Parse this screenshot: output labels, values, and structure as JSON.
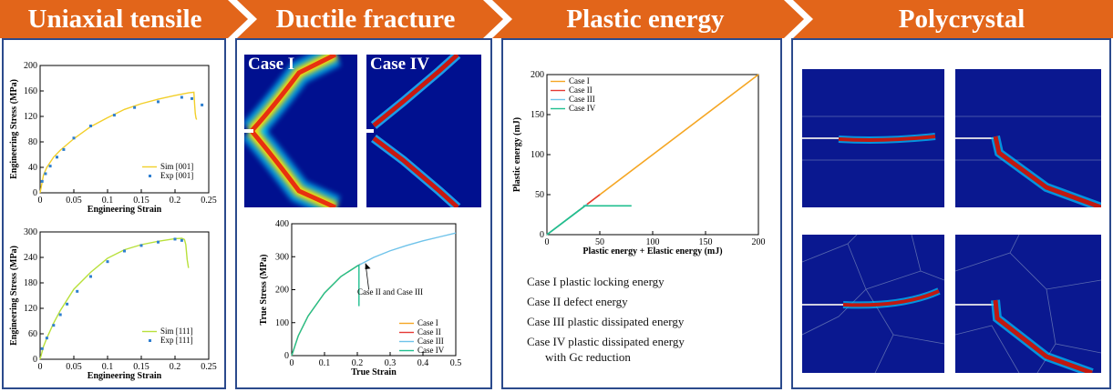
{
  "banner": {
    "items": [
      "Uniaxial tensile",
      "Ductile fracture",
      "Plastic energy",
      "Polycrystal"
    ],
    "color": "#e2651a"
  },
  "tensile_001": {
    "chart_data": {
      "type": "line",
      "xlabel": "Engineering Strain",
      "ylabel": "Engineering Stress (MPa)",
      "xlim": [
        0,
        0.25
      ],
      "ylim": [
        0,
        200
      ],
      "xticks": [
        "0",
        "0.05",
        "0.1",
        "0.15",
        "0.2",
        "0.25"
      ],
      "yticks": [
        "0",
        "40",
        "80",
        "120",
        "160",
        "200"
      ],
      "legend": [
        "Sim [001]",
        "Exp [001]"
      ],
      "series": [
        {
          "name": "Sim [001]",
          "color": "#f2cf2a",
          "x": [
            0,
            0.005,
            0.01,
            0.02,
            0.03,
            0.05,
            0.075,
            0.1,
            0.125,
            0.15,
            0.175,
            0.2,
            0.22,
            0.228,
            0.229,
            0.23,
            0.231,
            0.232
          ],
          "y": [
            0,
            28,
            40,
            56,
            67,
            85,
            104,
            118,
            131,
            140,
            147,
            153,
            157,
            158,
            140,
            125,
            118,
            115
          ]
        },
        {
          "name": "Exp [001]",
          "color": "#2f7fd0",
          "x": [
            0.003,
            0.008,
            0.015,
            0.025,
            0.035,
            0.05,
            0.075,
            0.11,
            0.14,
            0.175,
            0.21,
            0.225,
            0.24
          ],
          "y": [
            18,
            30,
            42,
            56,
            68,
            86,
            105,
            122,
            134,
            143,
            150,
            148,
            138
          ]
        }
      ]
    }
  },
  "tensile_111": {
    "chart_data": {
      "type": "line",
      "xlabel": "Engineering Strain",
      "ylabel": "Engineering Stress (MPa)",
      "xlim": [
        0,
        0.25
      ],
      "ylim": [
        0,
        300
      ],
      "xticks": [
        "0",
        "0.05",
        "0.1",
        "0.15",
        "0.2",
        "0.25"
      ],
      "yticks": [
        "0",
        "60",
        "120",
        "180",
        "240",
        "300"
      ],
      "legend": [
        "Sim [111]",
        "Exp [111]"
      ],
      "series": [
        {
          "name": "Sim [111]",
          "color": "#b8e03a",
          "x": [
            0,
            0.005,
            0.01,
            0.02,
            0.03,
            0.05,
            0.075,
            0.1,
            0.125,
            0.15,
            0.175,
            0.2,
            0.21,
            0.214,
            0.216,
            0.218,
            0.22
          ],
          "y": [
            0,
            30,
            50,
            85,
            115,
            165,
            205,
            238,
            258,
            270,
            278,
            284,
            285,
            282,
            270,
            235,
            215
          ]
        },
        {
          "name": "Exp [111]",
          "color": "#2f7fd0",
          "x": [
            0.003,
            0.01,
            0.02,
            0.03,
            0.04,
            0.055,
            0.075,
            0.1,
            0.125,
            0.15,
            0.175,
            0.2,
            0.21
          ],
          "y": [
            25,
            50,
            80,
            105,
            130,
            160,
            195,
            230,
            255,
            268,
            276,
            283,
            280
          ]
        }
      ]
    }
  },
  "fracture": {
    "case1": "Case I",
    "case4": "Case IV"
  },
  "true_stress": {
    "chart_data": {
      "type": "line",
      "xlabel": "True Strain",
      "ylabel": "True Stress (MPa)",
      "xlim": [
        0,
        0.5
      ],
      "ylim": [
        0,
        400
      ],
      "xticks": [
        "0",
        "0.1",
        "0.2",
        "0.3",
        "0.4",
        "0.5"
      ],
      "yticks": [
        "0",
        "100",
        "200",
        "300",
        "400"
      ],
      "annotation": "Case II and Case III",
      "legend": [
        "Case I",
        "Case II",
        "Case III",
        "Case IV"
      ],
      "series": [
        {
          "name": "Case I",
          "color": "#f5a623",
          "x": [
            0,
            0.02,
            0.05,
            0.1,
            0.15,
            0.2
          ],
          "y": [
            0,
            60,
            120,
            190,
            240,
            272
          ]
        },
        {
          "name": "Case II",
          "color": "#e53935",
          "x": [
            0.2,
            0.21
          ],
          "y": [
            272,
            278
          ]
        },
        {
          "name": "Case III",
          "color": "#6fc3ea",
          "x": [
            0.2,
            0.25,
            0.3,
            0.35,
            0.4,
            0.45,
            0.5
          ],
          "y": [
            272,
            298,
            318,
            334,
            348,
            360,
            372
          ]
        },
        {
          "name": "Case IV",
          "color": "#1fbf8f",
          "x": [
            0,
            0.02,
            0.05,
            0.1,
            0.15,
            0.2,
            0.205,
            0.205,
            0.205
          ],
          "y": [
            0,
            60,
            120,
            190,
            240,
            272,
            274,
            230,
            150
          ]
        }
      ]
    }
  },
  "plastic_energy": {
    "chart_data": {
      "type": "line",
      "xlabel": "Plastic energy + Elastic energy (mJ)",
      "ylabel": "Plastic energy (mJ)",
      "xlim": [
        0,
        200
      ],
      "ylim": [
        0,
        200
      ],
      "xticks": [
        "0",
        "50",
        "100",
        "150",
        "200"
      ],
      "yticks": [
        "0",
        "50",
        "100",
        "150",
        "200"
      ],
      "legend": [
        "Case I",
        "Case II",
        "Case III",
        "Case IV"
      ],
      "series": [
        {
          "name": "Case I",
          "color": "#f5a623",
          "x": [
            0,
            200
          ],
          "y": [
            0,
            200
          ]
        },
        {
          "name": "Case II",
          "color": "#e53935",
          "x": [
            30,
            50
          ],
          "y": [
            30,
            50
          ]
        },
        {
          "name": "Case III",
          "color": "#6fc3ea",
          "x": [
            0,
            38
          ],
          "y": [
            0,
            38
          ]
        },
        {
          "name": "Case IV",
          "color": "#1fbf8f",
          "x": [
            0,
            35,
            35,
            80
          ],
          "y": [
            0,
            35,
            36,
            36
          ]
        }
      ]
    },
    "notes": [
      "Case I plastic locking energy",
      "Case II defect energy",
      "Case III plastic dissipated energy",
      "Case IV plastic dissipated energy",
      "with Gc reduction"
    ]
  },
  "polycrystal": {
    "images": [
      "polycrystal-straight-crack",
      "polycrystal-kinked-crack",
      "polycrystal-grains-straight-crack",
      "polycrystal-grains-kinked-crack"
    ]
  }
}
